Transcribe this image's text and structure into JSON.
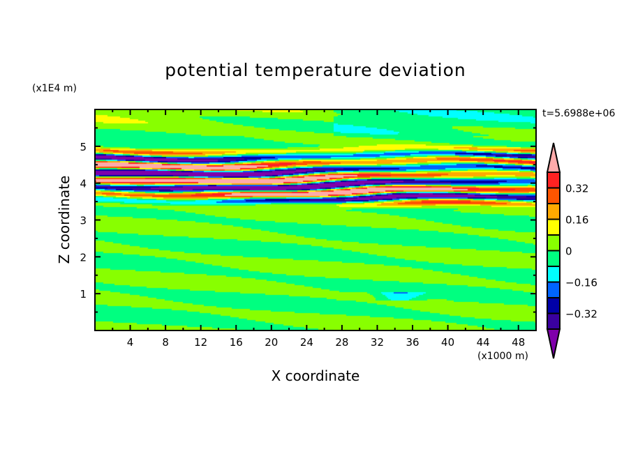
{
  "chart_data": {
    "type": "heatmap",
    "title": "potential temperature deviation",
    "xlabel": "X coordinate",
    "ylabel": "Z coordinate",
    "x_unit": "(x1000 m)",
    "y_unit": "(x1E4 m)",
    "time_label": "t=5.6988e+06",
    "xlim": [
      0,
      50
    ],
    "ylim": [
      0,
      6
    ],
    "x_ticks": [
      "4",
      "8",
      "12",
      "16",
      "20",
      "24",
      "28",
      "32",
      "36",
      "40",
      "44",
      "48"
    ],
    "y_ticks": [
      "1",
      "2",
      "3",
      "4",
      "5"
    ],
    "colorbar": {
      "levels": [
        -0.4,
        -0.32,
        -0.24,
        -0.16,
        -0.08,
        0,
        0.08,
        0.16,
        0.24,
        0.32,
        0.4
      ],
      "labels": [
        "0.32",
        "0.16",
        "0",
        "-0.16",
        "-0.32"
      ],
      "colors": [
        "#7f00aa",
        "#3a00a0",
        "#0000a8",
        "#0064ff",
        "#00ffff",
        "#00ff80",
        "#88ff00",
        "#ffff00",
        "#ffaa00",
        "#ff5500",
        "#ff2222",
        "#ffaaaa"
      ]
    },
    "description_of_field": "layered alternating positive/negative anomalies between z≈3.1 and 5.3 (x1E4 m); weak near-zero values elsewhere"
  }
}
